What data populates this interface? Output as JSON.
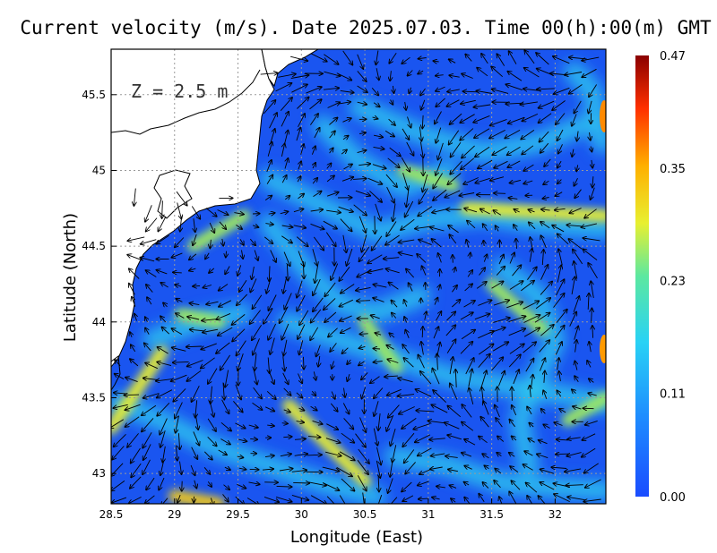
{
  "title": "Current velocity (m/s). Date 2025.07.03. Time 00(h):00(m) GMT",
  "depth_label": "Z = 2.5 m",
  "xlabel": "Longitude (East)",
  "ylabel": "Latitude (North)",
  "x_ticks": [
    "28.5",
    "29",
    "29.5",
    "30",
    "30.5",
    "31",
    "31.5",
    "32"
  ],
  "y_ticks": [
    "43",
    "43.5",
    "44",
    "44.5",
    "45",
    "45.5"
  ],
  "colorbar_ticks": [
    "0.00",
    "0.11",
    "0.23",
    "0.35",
    "0.47"
  ],
  "colors": {
    "ocean_low": "#1a55f0",
    "ocean_mid": "#29c4f5",
    "ocean_high": "#f2e020",
    "land": "#ffffff",
    "coast": "#000000",
    "grid": "#9a9a9a"
  },
  "chart_data": {
    "type": "heatmap",
    "title": "Current velocity (m/s). Date 2025.07.03. Time 00(h):00(m) GMT",
    "xlabel": "Longitude (East)",
    "ylabel": "Latitude (North)",
    "xlim": [
      28.5,
      32.4
    ],
    "ylim": [
      42.8,
      45.8
    ],
    "grid": true,
    "colorbar": {
      "min": 0.0,
      "max": 0.47,
      "ticks": [
        0.0,
        0.11,
        0.23,
        0.35,
        0.47
      ]
    },
    "high_speed_jets": [
      {
        "lon": [
          29.9,
          30.5
        ],
        "lat": [
          43.45,
          42.95
        ],
        "speed": 0.3
      },
      {
        "lon": [
          29.0,
          29.35
        ],
        "lat": [
          42.85,
          42.8
        ],
        "speed": 0.35
      },
      {
        "lon": [
          31.3,
          32.4
        ],
        "lat": [
          44.75,
          44.7
        ],
        "speed": 0.3
      },
      {
        "lon": [
          28.5,
          28.9
        ],
        "lat": [
          43.3,
          43.8
        ],
        "speed": 0.28
      },
      {
        "lon": [
          30.5,
          30.75
        ],
        "lat": [
          44.0,
          43.7
        ],
        "speed": 0.25
      },
      {
        "lon": [
          29.05,
          29.35
        ],
        "lat": [
          44.05,
          44.0
        ],
        "speed": 0.22
      },
      {
        "lon": [
          30.8,
          31.2
        ],
        "lat": [
          45.0,
          44.9
        ],
        "speed": 0.2
      },
      {
        "lon": [
          31.5,
          31.9
        ],
        "lat": [
          44.25,
          43.95
        ],
        "speed": 0.2
      },
      {
        "lon": [
          32.1,
          32.4
        ],
        "lat": [
          43.35,
          43.5
        ],
        "speed": 0.2
      },
      {
        "lon": [
          29.55,
          29.15
        ],
        "lat": [
          44.7,
          44.5
        ],
        "speed": 0.22
      }
    ]
  }
}
